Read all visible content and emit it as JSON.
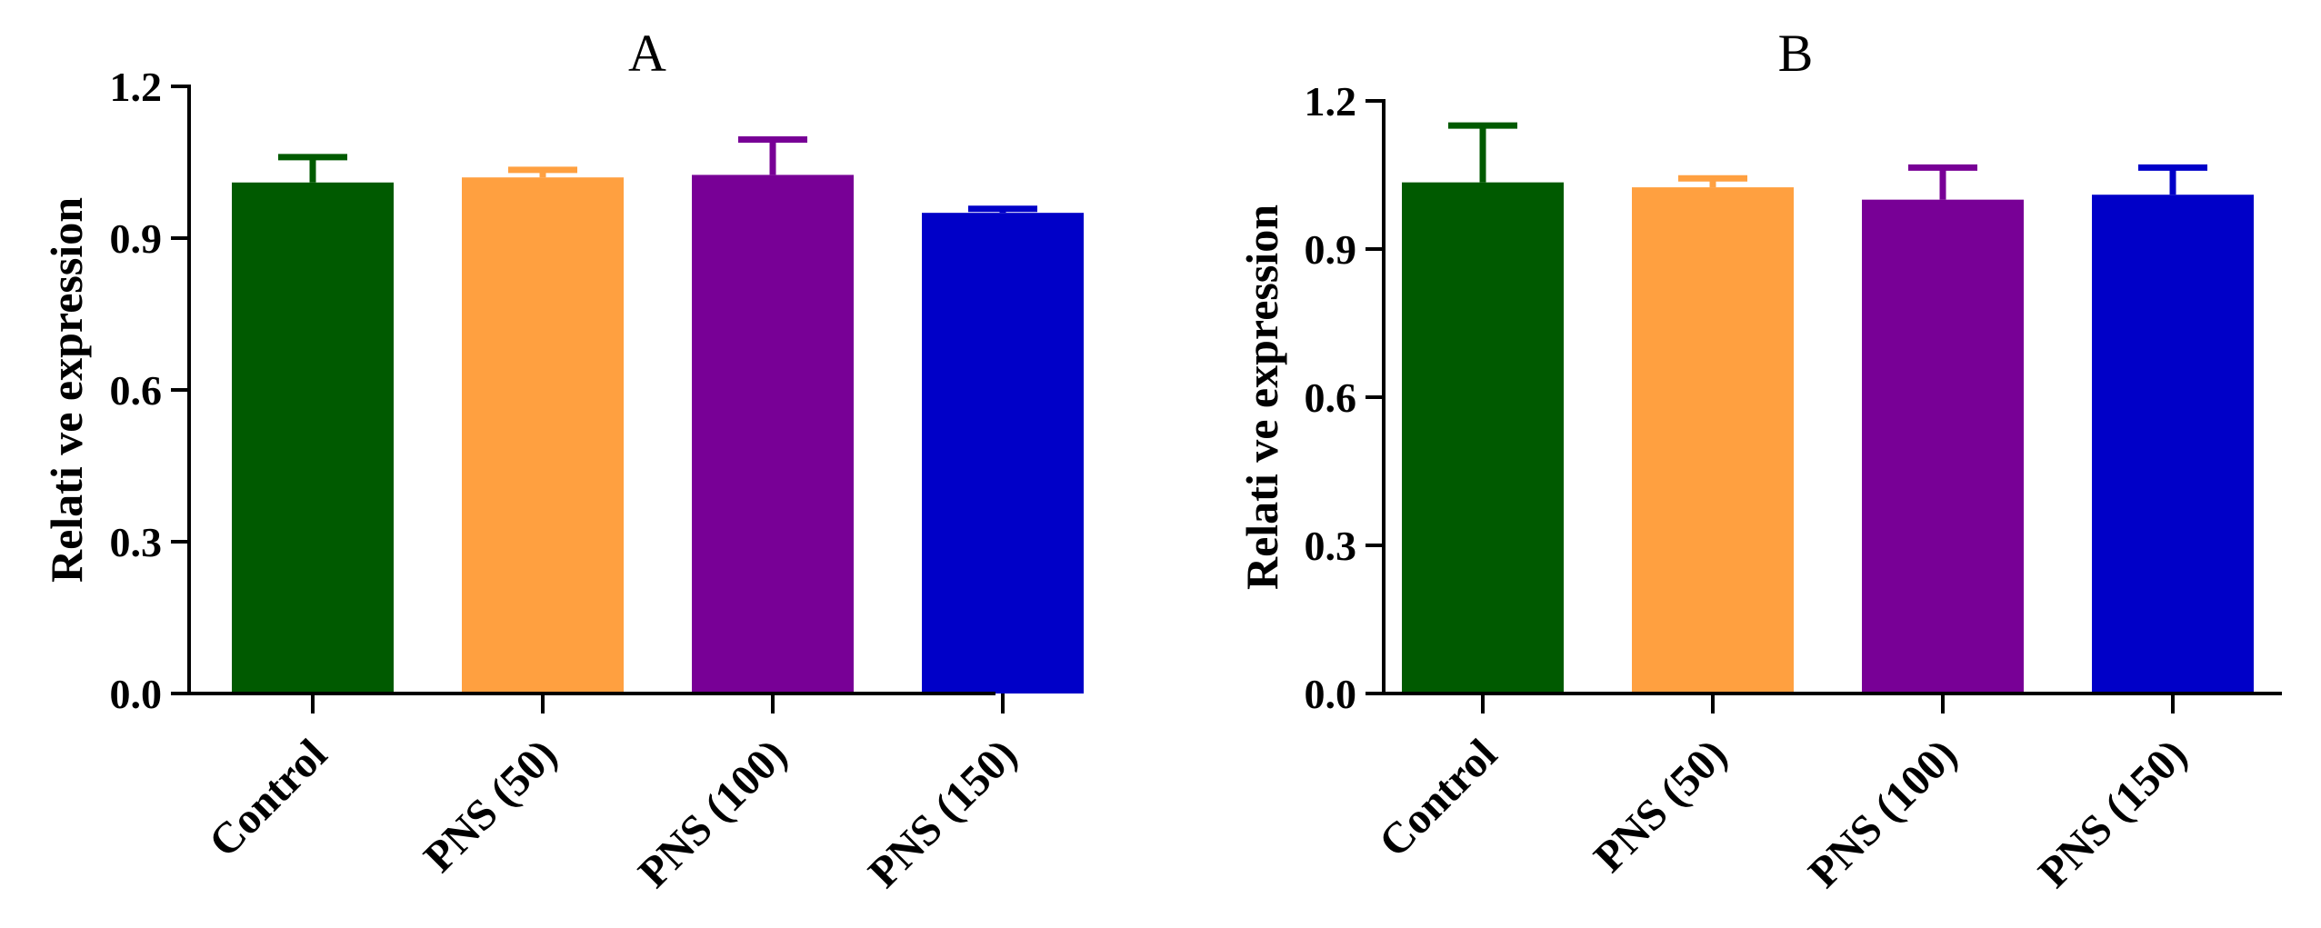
{
  "chart_data": [
    {
      "type": "bar",
      "title": "A",
      "xlabel": "",
      "ylabel": "Relati ve expression",
      "ylim": [
        0,
        1.2
      ],
      "yticks": [
        "0.0",
        "0.3",
        "0.6",
        "0.9",
        "1.2"
      ],
      "categories": [
        "Control",
        "PNS (50)",
        "PNS (100)",
        "PNS (150)"
      ],
      "values": [
        1.01,
        1.02,
        1.025,
        0.95
      ],
      "errors": [
        0.05,
        0.015,
        0.07,
        0.008
      ],
      "colors": [
        "#005a00",
        "#ffa040",
        "#780096",
        "#0000c8"
      ]
    },
    {
      "type": "bar",
      "title": "B",
      "xlabel": "",
      "ylabel": "Relati ve expression",
      "ylim": [
        0,
        1.2
      ],
      "yticks": [
        "0.0",
        "0.3",
        "0.6",
        "0.9",
        "1.2"
      ],
      "categories": [
        "Control",
        "PNS (50)",
        "PNS (100)",
        "PNS (150)"
      ],
      "values": [
        1.035,
        1.025,
        1.0,
        1.01
      ],
      "errors": [
        0.115,
        0.018,
        0.065,
        0.055
      ],
      "colors": [
        "#005a00",
        "#ffa040",
        "#780096",
        "#0000c8"
      ]
    }
  ]
}
